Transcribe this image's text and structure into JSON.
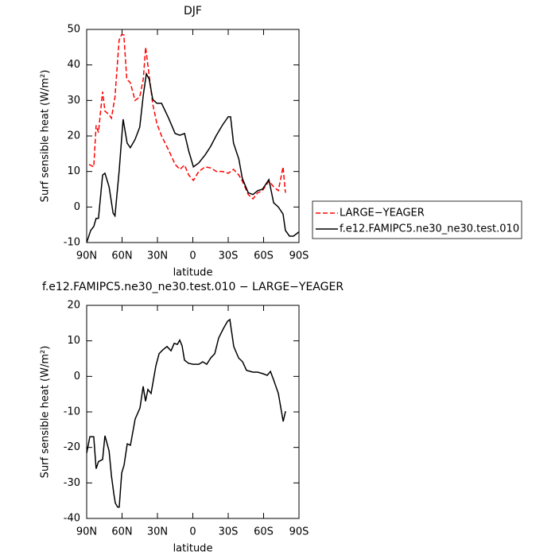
{
  "chart_data": [
    {
      "type": "line",
      "title": "DJF",
      "xlabel": "latitude",
      "ylabel": "Surf sensible heat (W/m²)",
      "xlim": [
        90,
        -90
      ],
      "ylim": [
        -10,
        50
      ],
      "xticks": [
        {
          "value": 90,
          "label": "90N"
        },
        {
          "value": 60,
          "label": "60N"
        },
        {
          "value": 30,
          "label": "30N"
        },
        0,
        {
          "value": -30,
          "label": "30S"
        },
        {
          "value": -60,
          "label": "60S"
        },
        {
          "value": -90,
          "label": "90S"
        }
      ],
      "yticks": [
        -10,
        0,
        10,
        20,
        30,
        40,
        50
      ],
      "legend": "right",
      "series": [
        {
          "name": "LARGE−YEAGER",
          "color": "#ff0000",
          "dash": true,
          "x": [
            88,
            84,
            82,
            80,
            76.5,
            74.5,
            71,
            69,
            66,
            62.5,
            60.5,
            58.5,
            56,
            53,
            49,
            45,
            42,
            40,
            37,
            34,
            30.5,
            26.5,
            20.5,
            15,
            11,
            7,
            3.5,
            -0.5,
            -5,
            -10.5,
            -15,
            -20,
            -25,
            -30,
            -34.5,
            -39,
            -42,
            -47,
            -51,
            -55,
            -59,
            -64.5,
            -68.5,
            -72.5,
            -76.5,
            -78.5
          ],
          "values": [
            12,
            11.3,
            23,
            21,
            32.5,
            27,
            26,
            25,
            31,
            47,
            48.5,
            48.5,
            36,
            35,
            30,
            31,
            36,
            45,
            37,
            29,
            23.5,
            20,
            16,
            12,
            10.6,
            11.8,
            9,
            7.5,
            10,
            11.3,
            11,
            10,
            10,
            9.5,
            10.6,
            9,
            7.3,
            3.5,
            2.3,
            4,
            4.6,
            7.3,
            5.7,
            4.6,
            11.3,
            4
          ]
        },
        {
          "name": "f.e12.FAMIPC5.ne30_ne30.test.010",
          "color": "#000000",
          "dash": false,
          "x": [
            90,
            86.6,
            84,
            82,
            80,
            76.5,
            74.5,
            71,
            67.6,
            66,
            62.5,
            59.1,
            55.7,
            53,
            49,
            45,
            42,
            39.4,
            37,
            34,
            30.5,
            26.5,
            20.5,
            15,
            11,
            7,
            3.5,
            -0.5,
            -5,
            -10.5,
            -15,
            -20,
            -25,
            -30,
            -32,
            -34.5,
            -39,
            -42,
            -47,
            -51,
            -55,
            -59,
            -64.5,
            -68.5,
            -72.5,
            -76.5,
            -78.5,
            -82,
            -85.3,
            -90
          ],
          "values": [
            -10,
            -6.6,
            -5.5,
            -3.2,
            -3.2,
            9,
            9.5,
            5.7,
            -1.7,
            -2.5,
            10,
            24.7,
            18,
            16.7,
            19,
            22.5,
            31.5,
            37.5,
            36,
            30.3,
            29.2,
            29.2,
            25,
            20.7,
            20.2,
            20.7,
            15.8,
            11.3,
            12.4,
            14.7,
            17,
            20.2,
            23,
            25.4,
            25.4,
            18,
            13.5,
            8,
            4,
            3.5,
            4.6,
            5,
            7.7,
            1.2,
            0,
            -2,
            -6.6,
            -8.2,
            -8.2,
            -7
          ]
        }
      ]
    },
    {
      "type": "line",
      "title": "f.e12.FAMIPC5.ne30_ne30.test.010 − LARGE−YEAGER",
      "xlabel": "latitude",
      "ylabel": "Surf sensible heat (W/m²)",
      "xlim": [
        90,
        -90
      ],
      "ylim": [
        -40,
        20
      ],
      "xticks": [
        {
          "value": 90,
          "label": "90N"
        },
        {
          "value": 60,
          "label": "60N"
        },
        {
          "value": 30,
          "label": "30N"
        },
        0,
        {
          "value": -30,
          "label": "30S"
        },
        {
          "value": -60,
          "label": "60S"
        },
        {
          "value": -90,
          "label": "90S"
        }
      ],
      "yticks": [
        -40,
        -30,
        -20,
        -10,
        0,
        10,
        20
      ],
      "series": [
        {
          "color": "#000000",
          "dash": false,
          "x": [
            90,
            87.3,
            84,
            82,
            80,
            76.5,
            74.5,
            71,
            69,
            67,
            65.7,
            63.7,
            62.4,
            60.3,
            58.3,
            55.6,
            52.9,
            48.9,
            44.8,
            42.1,
            40.1,
            38.1,
            35.4,
            31.3,
            28.6,
            25.3,
            21.9,
            18.5,
            15.8,
            13.1,
            11.1,
            9.1,
            7.1,
            3.7,
            -0.4,
            -5.1,
            -8.4,
            -11.8,
            -15.2,
            -18.6,
            -21.9,
            -26,
            -29.4,
            -31.4,
            -34.7,
            -38.8,
            -42.2,
            -45.5,
            -50.9,
            -55,
            -59,
            -63.1,
            -65.8,
            -68.5,
            -72.5,
            -76.6,
            -78.6
          ],
          "values": [
            -21.6,
            -17,
            -17,
            -26,
            -24,
            -23.4,
            -16.7,
            -21,
            -28,
            -33,
            -35.7,
            -36.8,
            -36.8,
            -27.2,
            -25,
            -19,
            -19.4,
            -12,
            -8.9,
            -2.8,
            -7,
            -3.7,
            -4.8,
            3,
            6.4,
            7.5,
            8.4,
            7.2,
            9.3,
            9,
            10.2,
            8.6,
            4.6,
            3.7,
            3.4,
            3.4,
            4.1,
            3.4,
            5.2,
            6.4,
            10.8,
            13.5,
            15.5,
            16,
            8.4,
            5.2,
            4.1,
            1.7,
            1.2,
            1.2,
            0.8,
            0.3,
            1.4,
            -1,
            -4.8,
            -12.7,
            -9.8
          ]
        }
      ]
    }
  ]
}
